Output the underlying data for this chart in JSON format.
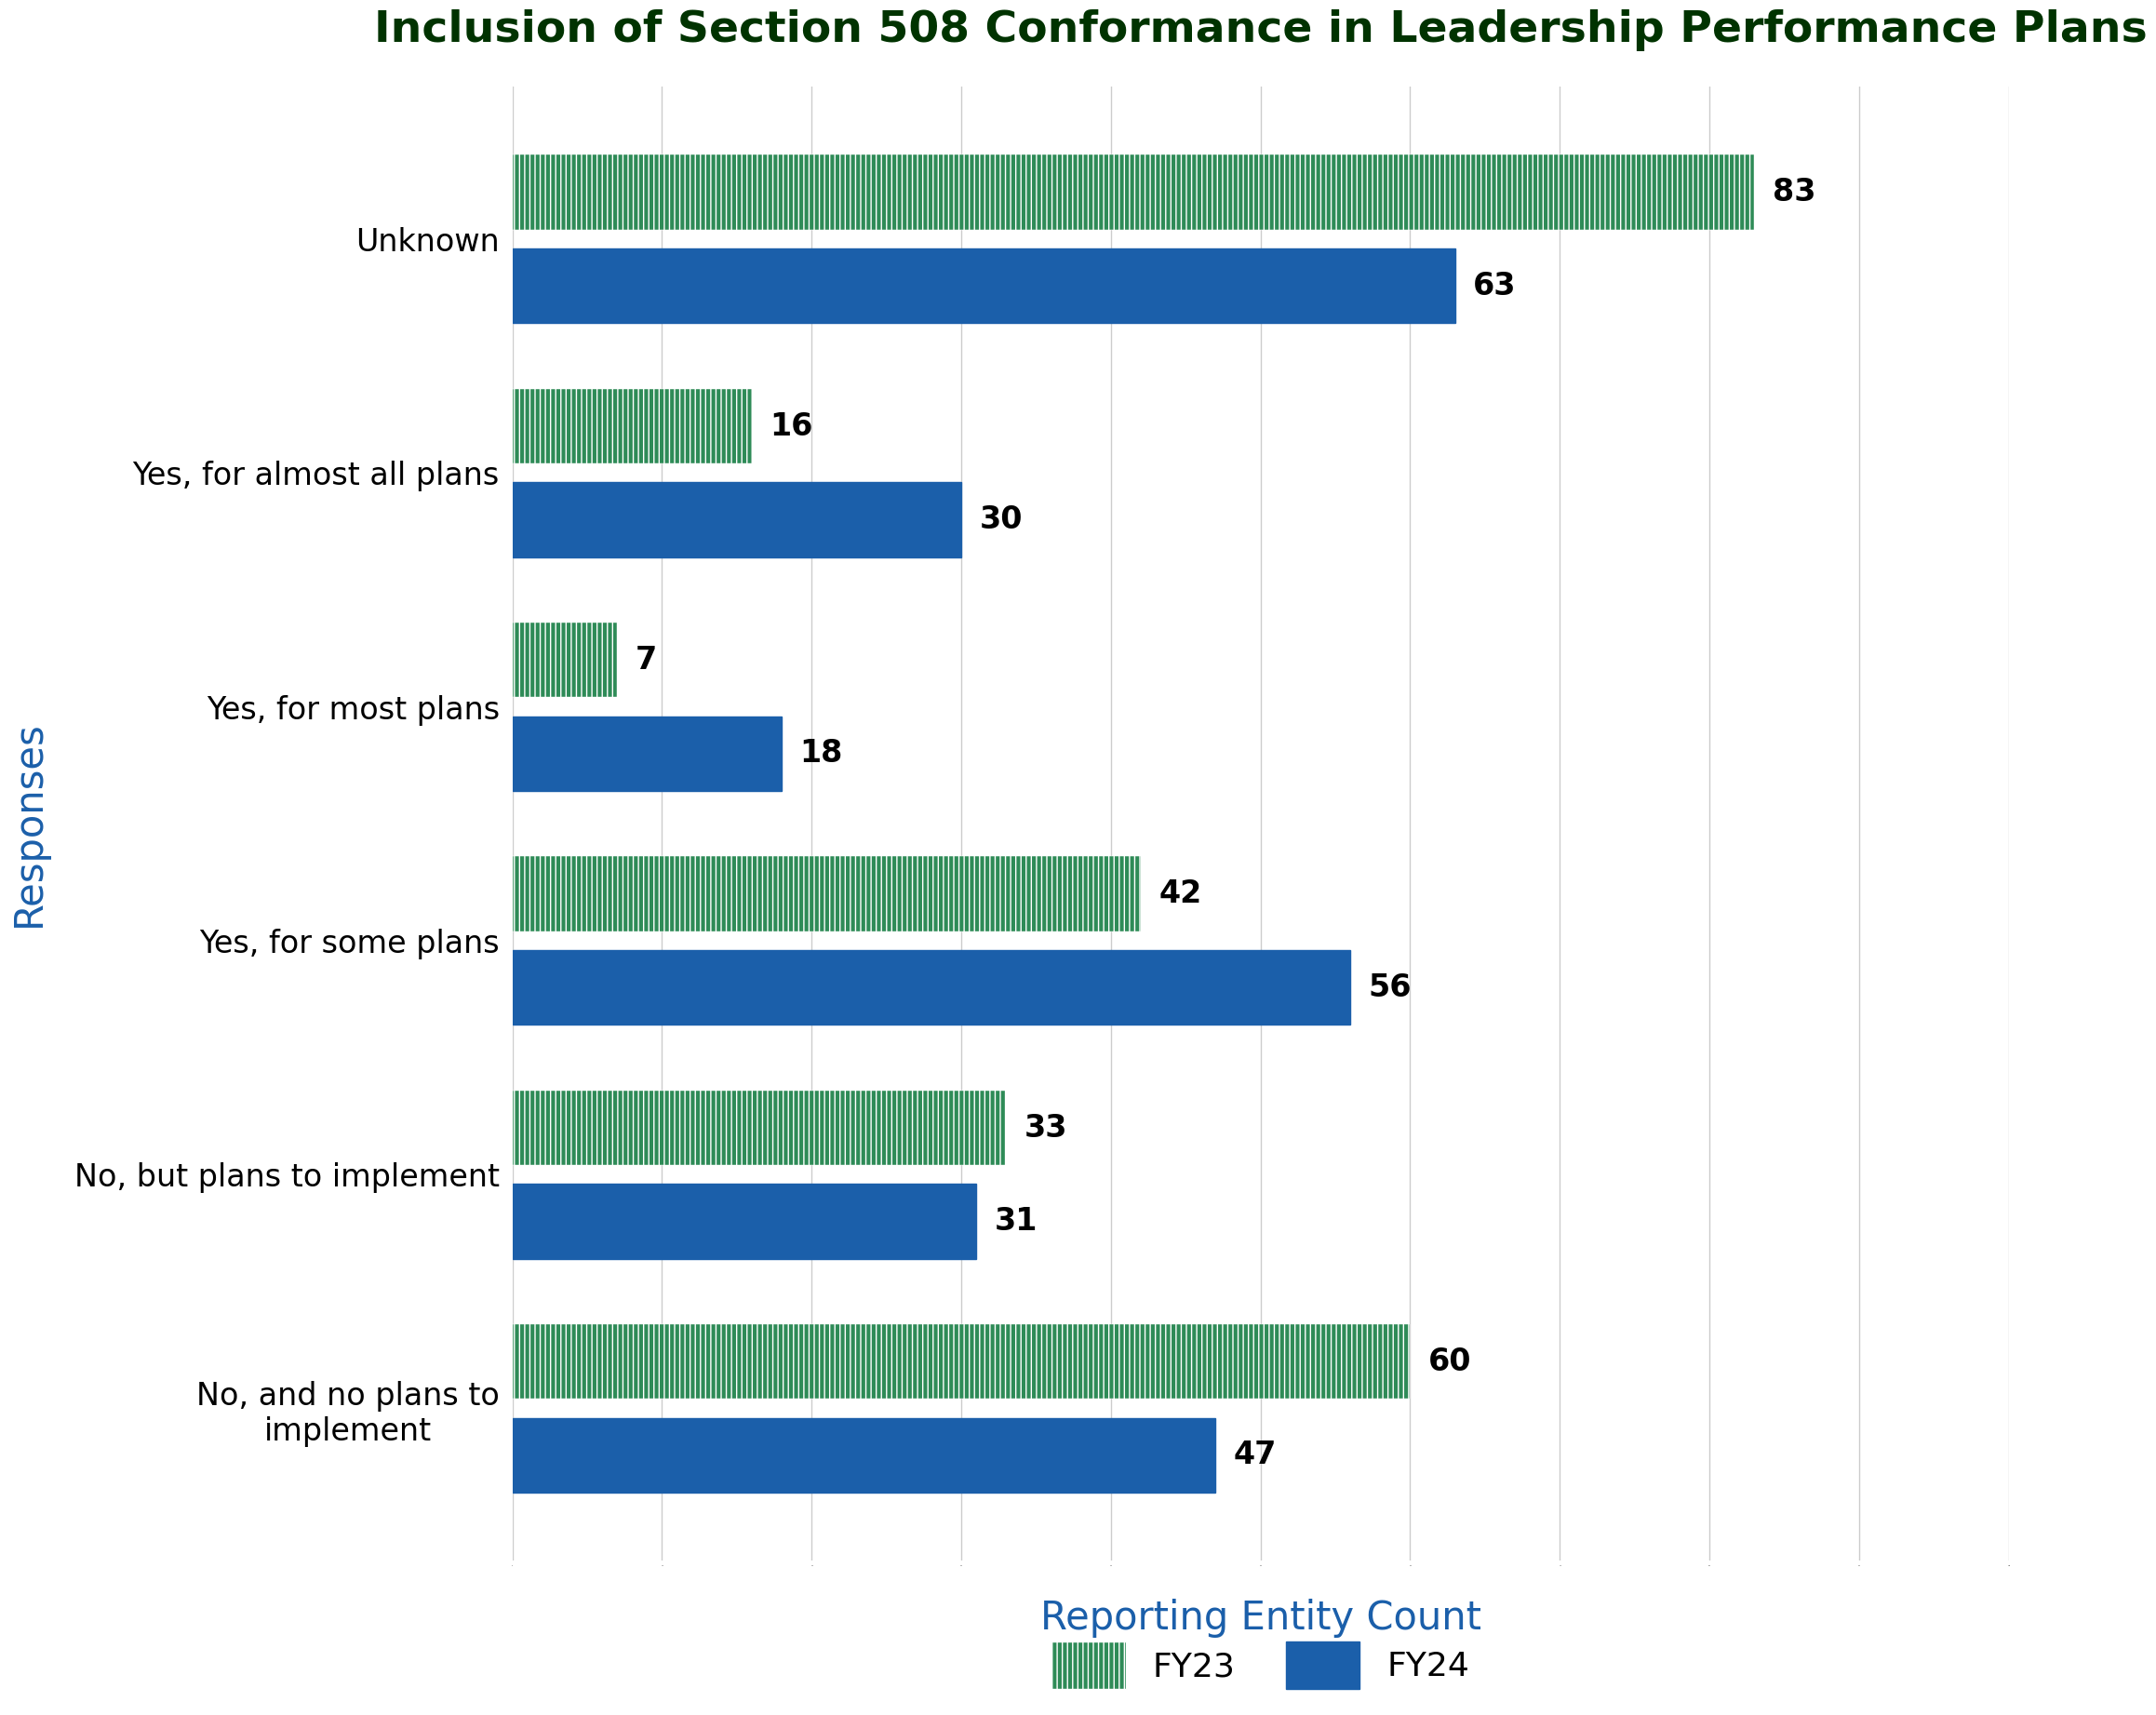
{
  "title": "Inclusion of Section 508 Conformance in Leadership Performance Plans",
  "categories": [
    "No, and no plans to\nimplement",
    "No, but plans to implement",
    "Yes, for some plans",
    "Yes, for most plans",
    "Yes, for almost all plans",
    "Unknown"
  ],
  "fy23_values": [
    60,
    33,
    42,
    7,
    16,
    83
  ],
  "fy24_values": [
    47,
    31,
    56,
    18,
    30,
    63
  ],
  "fy23_color": "#2e8b57",
  "fy24_color": "#1b5faa",
  "hatch_pattern": "|||",
  "xlabel": "Reporting Entity Count",
  "ylabel": "Responses",
  "xlim_max": 100,
  "title_color": "#003300",
  "title_fontsize": 34,
  "label_fontsize": 30,
  "tick_fontsize": 24,
  "value_fontsize": 24,
  "legend_fontsize": 26,
  "background_color": "#ffffff",
  "grid_color": "#cccccc"
}
